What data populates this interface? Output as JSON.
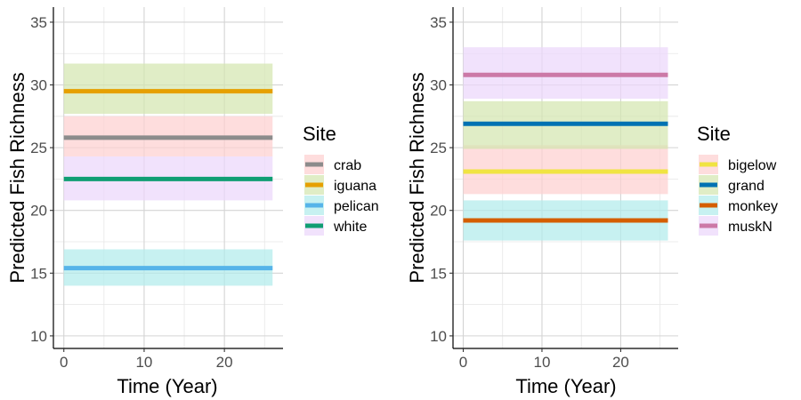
{
  "chart_data": [
    {
      "type": "line",
      "xlabel": "Time (Year)",
      "ylabel": "Predicted Fish Richness",
      "xlim": [
        -1.3,
        27.3
      ],
      "ylim": [
        9,
        36.2
      ],
      "xticks": [
        0,
        10,
        20
      ],
      "yticks": [
        10,
        15,
        20,
        25,
        30,
        35
      ],
      "grid": true,
      "legend": {
        "title": "Site",
        "position": "right"
      },
      "series": [
        {
          "name": "crab",
          "x": [
            0,
            26
          ],
          "y": [
            25.8,
            25.8
          ],
          "lower": 24.3,
          "upper": 27.5,
          "line_color": "#8c8c8c",
          "band_color": "#fdd0d0"
        },
        {
          "name": "iguana",
          "x": [
            0,
            26
          ],
          "y": [
            29.5,
            29.5
          ],
          "lower": 27.7,
          "upper": 31.7,
          "line_color": "#e6a000",
          "band_color": "#d4e6b0"
        },
        {
          "name": "pelican",
          "x": [
            0,
            26
          ],
          "y": [
            15.4,
            15.4
          ],
          "lower": 14.0,
          "upper": 16.9,
          "line_color": "#56b4e9",
          "band_color": "#b2ebec"
        },
        {
          "name": "white",
          "x": [
            0,
            26
          ],
          "y": [
            22.5,
            22.5
          ],
          "lower": 20.8,
          "upper": 24.3,
          "line_color": "#109e73",
          "band_color": "#ebd7fb"
        }
      ]
    },
    {
      "type": "line",
      "xlabel": "Time (Year)",
      "ylabel": "Predicted Fish Richness",
      "xlim": [
        -1.3,
        27.3
      ],
      "ylim": [
        9,
        36.2
      ],
      "xticks": [
        0,
        10,
        20
      ],
      "yticks": [
        10,
        15,
        20,
        25,
        30,
        35
      ],
      "grid": true,
      "legend": {
        "title": "Site",
        "position": "right"
      },
      "series": [
        {
          "name": "bigelow",
          "x": [
            0,
            26
          ],
          "y": [
            23.1,
            23.1
          ],
          "lower": 21.3,
          "upper": 25.2,
          "line_color": "#f0e442",
          "band_color": "#fdd0d0"
        },
        {
          "name": "grand",
          "x": [
            0,
            26
          ],
          "y": [
            26.9,
            26.9
          ],
          "lower": 24.9,
          "upper": 28.7,
          "line_color": "#0072b2",
          "band_color": "#d4e6b0"
        },
        {
          "name": "monkey",
          "x": [
            0,
            26
          ],
          "y": [
            19.2,
            19.2
          ],
          "lower": 17.6,
          "upper": 20.8,
          "line_color": "#d55e00",
          "band_color": "#b2ebec"
        },
        {
          "name": "muskN",
          "x": [
            0,
            26
          ],
          "y": [
            30.8,
            30.8
          ],
          "lower": 28.9,
          "upper": 33.0,
          "line_color": "#cc79a7",
          "band_color": "#ebd7fb"
        }
      ]
    }
  ]
}
